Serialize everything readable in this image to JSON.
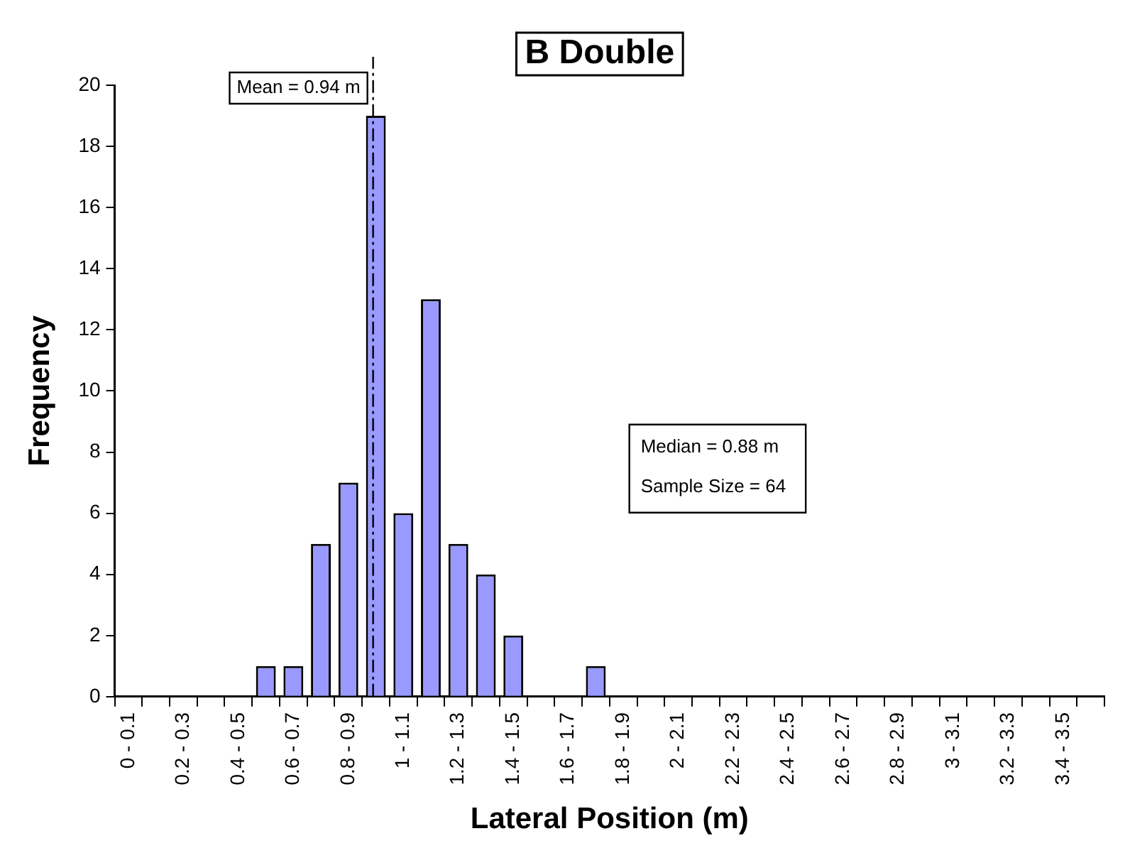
{
  "chart_data": {
    "type": "bar",
    "title": "B Double",
    "xlabel": "Lateral Position (m)",
    "ylabel": "Frequency",
    "categories": [
      "0 - 0.1",
      null,
      "0.2 - 0.3",
      null,
      "0.4 - 0.5",
      null,
      "0.6 - 0.7",
      null,
      "0.8 - 0.9",
      null,
      "1 - 1.1",
      null,
      "1.2 - 1.3",
      null,
      "1.4 - 1.5",
      null,
      "1.6 - 1.7",
      null,
      "1.8 - 1.9",
      null,
      "2 - 2.1",
      null,
      "2.2 - 2.3",
      null,
      "2.4 - 2.5",
      null,
      "2.6 - 2.7",
      null,
      "2.8 - 2.9",
      null,
      "3 - 3.1",
      null,
      "3.2 - 3.3",
      null,
      "3.4 - 3.5",
      null
    ],
    "values": [
      0,
      0,
      0,
      0,
      0,
      1,
      1,
      5,
      7,
      19,
      6,
      13,
      5,
      4,
      2,
      0,
      0,
      1,
      0,
      0,
      0,
      0,
      0,
      0,
      0,
      0,
      0,
      0,
      0,
      0,
      0,
      0,
      0,
      0,
      0,
      0
    ],
    "color": "#9999ff",
    "ylim": [
      0,
      20
    ],
    "yticks": [
      0,
      2,
      4,
      6,
      8,
      10,
      12,
      14,
      16,
      18,
      20
    ],
    "annotations": [
      "Mean = 0.94 m",
      "Median = 0.88 m",
      "Sample Size = 64"
    ]
  }
}
